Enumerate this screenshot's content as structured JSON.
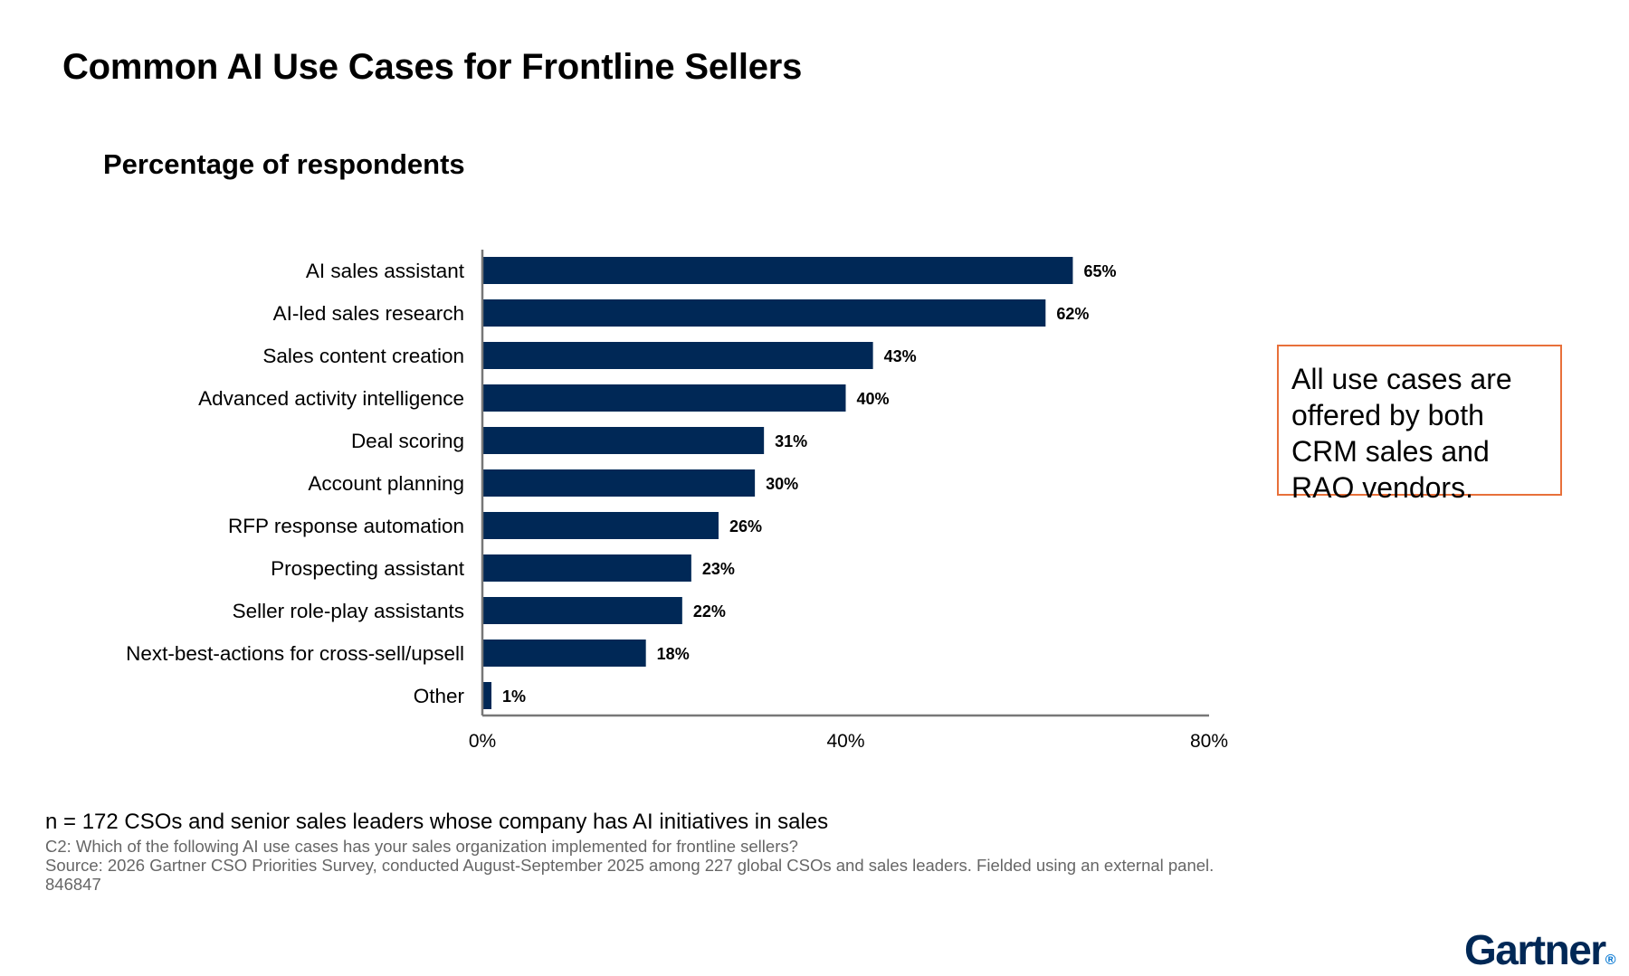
{
  "title": "Common AI Use Cases for Frontline Sellers",
  "subtitle": "Percentage of respondents",
  "callout": "All use cases are offered by both CRM sales and RAO vendors.",
  "footnotes": {
    "n": "n = 172 CSOs and senior sales leaders whose company has AI initiatives in sales",
    "question": "C2: Which of the following AI use cases has your sales organization implemented for frontline sellers?",
    "source": "Source: 2026 Gartner CSO Priorities Survey, conducted August-September 2025 among 227 global CSOs and sales leaders. Fielded using an external panel.",
    "id": "846847"
  },
  "logo": "Gartner",
  "colors": {
    "bar": "#002856",
    "callout_border": "#e8703a",
    "axis": "#777777"
  },
  "chart_data": {
    "type": "bar",
    "orientation": "horizontal",
    "categories": [
      "AI sales assistant",
      "AI-led sales research",
      "Sales content creation",
      "Advanced activity intelligence",
      "Deal scoring",
      "Account planning",
      "RFP response automation",
      "Prospecting assistant",
      "Seller role-play assistants",
      "Next-best-actions for cross-sell/upsell",
      "Other"
    ],
    "values": [
      65,
      62,
      43,
      40,
      31,
      30,
      26,
      23,
      22,
      18,
      1
    ],
    "value_labels": [
      "65%",
      "62%",
      "43%",
      "40%",
      "31%",
      "30%",
      "26%",
      "23%",
      "22%",
      "18%",
      "1%"
    ],
    "xlim": [
      0,
      80
    ],
    "xticks": [
      0,
      40,
      80
    ],
    "xtick_labels": [
      "0%",
      "40%",
      "80%"
    ],
    "grid": false
  }
}
